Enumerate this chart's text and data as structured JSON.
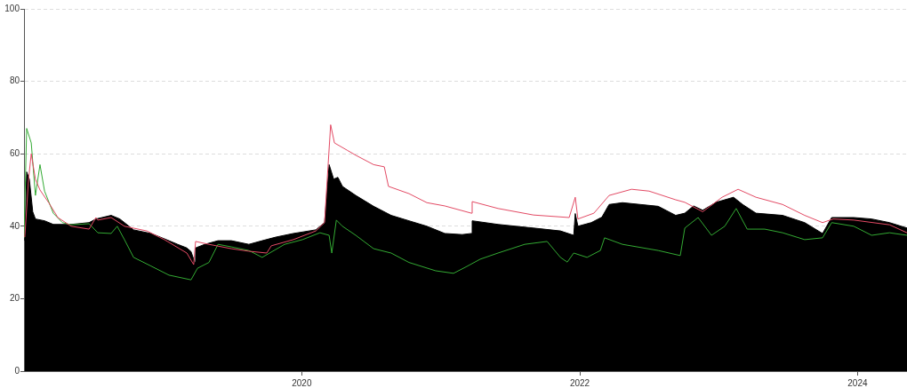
{
  "chart_data": {
    "type": "line",
    "xlim": [
      "2018-01-01",
      "2024-05-10"
    ],
    "xticks": [
      "2020",
      "2022",
      "2024"
    ],
    "ylim": [
      0,
      100
    ],
    "yticks": [
      0,
      20,
      40,
      60,
      80,
      100
    ],
    "grid": "y",
    "series": [
      {
        "type": "area",
        "color": "#000000",
        "x": [
          "2018-01-03",
          "2018-01-08",
          "2018-01-15",
          "2018-01-24",
          "2018-01-31",
          "2018-02-24",
          "2018-03-19",
          "2018-05-05",
          "2018-06-21",
          "2018-07-09",
          "2018-08-18",
          "2018-09-10",
          "2018-10-16",
          "2018-12-01",
          "2018-12-25",
          "2019-02-09",
          "2019-03-05",
          "2019-03-16",
          "2019-03-26",
          "2019-03-28",
          "2019-04-21",
          "2019-05-26",
          "2019-06-30",
          "2019-08-15",
          "2019-09-19",
          "2019-10-25",
          "2019-12-10",
          "2020-02-07",
          "2020-03-01",
          "2020-03-13",
          "2020-03-25",
          "2020-04-05",
          "2020-04-17",
          "2020-05-22",
          "2020-07-08",
          "2020-08-23",
          "2020-10-09",
          "2020-11-25",
          "2021-01-11",
          "2021-02-26",
          "2021-03-22",
          "2021-03-24",
          "2021-05-31",
          "2021-09-01",
          "2021-11-11",
          "2021-12-16",
          "2021-12-20",
          "2021-12-27",
          "2022-01-31",
          "2022-02-28",
          "2022-03-19",
          "2022-04-23",
          "2022-06-09",
          "2022-07-26",
          "2022-09-10",
          "2022-10-04",
          "2022-10-27",
          "2022-11-20",
          "2022-12-25",
          "2023-02-09",
          "2023-03-05",
          "2023-04-09",
          "2023-06-18",
          "2023-08-15",
          "2023-10-01",
          "2023-10-25",
          "2023-12-22",
          "2024-02-07",
          "2024-03-25",
          "2024-05-10"
        ],
        "values": [
          36,
          55,
          53,
          44,
          42,
          41.5,
          40.5,
          40.5,
          41,
          42,
          43,
          42,
          39,
          38,
          37,
          35,
          34,
          33,
          30,
          34,
          35,
          36,
          36,
          35,
          36,
          37,
          38,
          39,
          41,
          57,
          53,
          53.5,
          51,
          48.5,
          45.5,
          43,
          41.5,
          40,
          38,
          37.7,
          38,
          41.5,
          40.5,
          39.5,
          38.7,
          37.5,
          43.5,
          40,
          41,
          42.5,
          46,
          46.5,
          46,
          45.5,
          43,
          43.6,
          45.6,
          44.4,
          46.6,
          48,
          46,
          43.6,
          43,
          41,
          38,
          42.4,
          42.4,
          42,
          41,
          39.5
        ]
      },
      {
        "type": "line",
        "color": "#e34a64",
        "x": [
          "2018-01-03",
          "2018-01-13",
          "2018-01-20",
          "2018-01-31",
          "2018-02-12",
          "2018-03-07",
          "2018-03-31",
          "2018-05-05",
          "2018-06-21",
          "2018-07-09",
          "2018-07-14",
          "2018-08-18",
          "2018-09-22",
          "2018-11-20",
          "2019-01-05",
          "2019-03-05",
          "2019-03-23",
          "2019-03-28",
          "2019-05-02",
          "2019-06-30",
          "2019-08-15",
          "2019-10-01",
          "2019-10-13",
          "2019-12-10",
          "2020-02-07",
          "2020-03-01",
          "2020-03-08",
          "2020-03-17",
          "2020-03-27",
          "2020-04-29",
          "2020-05-22",
          "2020-07-08",
          "2020-08-05",
          "2020-08-16",
          "2020-10-09",
          "2020-11-25",
          "2021-01-11",
          "2021-03-22",
          "2021-03-24",
          "2021-05-31",
          "2021-09-01",
          "2021-12-04",
          "2021-12-20",
          "2021-12-27",
          "2022-02-07",
          "2022-03-19",
          "2022-05-17",
          "2022-07-02",
          "2022-09-10",
          "2022-10-04",
          "2022-11-20",
          "2023-01-10",
          "2023-02-21",
          "2023-04-09",
          "2023-06-18",
          "2023-08-15",
          "2023-10-01",
          "2023-10-29",
          "2023-12-22",
          "2024-03-25",
          "2024-05-10"
        ],
        "values": [
          37,
          53,
          60,
          53,
          50,
          46.5,
          42.4,
          40,
          39.2,
          42.4,
          41.7,
          42.4,
          40,
          38.7,
          36.3,
          32.6,
          29.4,
          35.8,
          35,
          33.8,
          33.1,
          32.6,
          34.6,
          36.3,
          38.7,
          41,
          53,
          68,
          63,
          61,
          59.6,
          57,
          56.4,
          51,
          49,
          46.5,
          45.6,
          43.6,
          46.8,
          44.9,
          43.1,
          42.4,
          48,
          42,
          43.6,
          48.5,
          50.2,
          49.7,
          47.3,
          46.6,
          44,
          48,
          50.2,
          48,
          46,
          43,
          41,
          42,
          41.7,
          40.4,
          38.2
        ]
      },
      {
        "type": "line",
        "color": "#33aa33",
        "x": [
          "2018-01-01",
          "2018-01-08",
          "2018-01-20",
          "2018-01-31",
          "2018-02-12",
          "2018-02-24",
          "2018-03-19",
          "2018-04-12",
          "2018-05-05",
          "2018-06-21",
          "2018-07-14",
          "2018-08-18",
          "2018-09-03",
          "2018-09-22",
          "2018-10-16",
          "2018-12-01",
          "2019-01-17",
          "2019-03-16",
          "2019-04-02",
          "2019-05-02",
          "2019-05-26",
          "2019-06-30",
          "2019-08-15",
          "2019-09-19",
          "2019-11-17",
          "2020-01-03",
          "2020-02-18",
          "2020-03-13",
          "2020-03-20",
          "2020-04-01",
          "2020-04-17",
          "2020-05-22",
          "2020-07-08",
          "2020-08-23",
          "2020-10-09",
          "2020-12-18",
          "2021-02-03",
          "2021-03-10",
          "2021-04-14",
          "2021-05-31",
          "2021-08-09",
          "2021-10-07",
          "2021-11-11",
          "2021-11-29",
          "2021-12-16",
          "2022-01-20",
          "2022-02-24",
          "2022-03-07",
          "2022-04-23",
          "2022-07-26",
          "2022-09-22",
          "2022-10-04",
          "2022-11-08",
          "2022-12-13",
          "2023-01-17",
          "2023-02-16",
          "2023-03-17",
          "2023-05-02",
          "2023-06-18",
          "2023-08-15",
          "2023-10-01",
          "2023-10-25",
          "2023-12-22",
          "2024-02-07",
          "2024-03-25",
          "2024-05-10"
        ],
        "values": [
          36.8,
          67,
          63,
          48.5,
          57,
          49.7,
          43.6,
          41,
          40.4,
          40.7,
          38.2,
          38,
          40,
          36.3,
          31.4,
          29,
          26.5,
          25.2,
          28.4,
          30,
          35,
          34.3,
          33.3,
          31.4,
          35,
          36.3,
          38.2,
          37.5,
          32.6,
          41.7,
          40,
          37.5,
          33.8,
          32.6,
          30,
          27.7,
          27,
          28.9,
          30.9,
          32.6,
          35,
          35.8,
          31.4,
          30.1,
          32.6,
          31.4,
          33.3,
          36.8,
          35,
          33.3,
          31.9,
          39.5,
          42.4,
          37.5,
          40,
          44.9,
          39.2,
          39.2,
          38.2,
          36.3,
          36.8,
          41,
          40,
          37.5,
          38.2,
          37.5
        ]
      }
    ]
  }
}
